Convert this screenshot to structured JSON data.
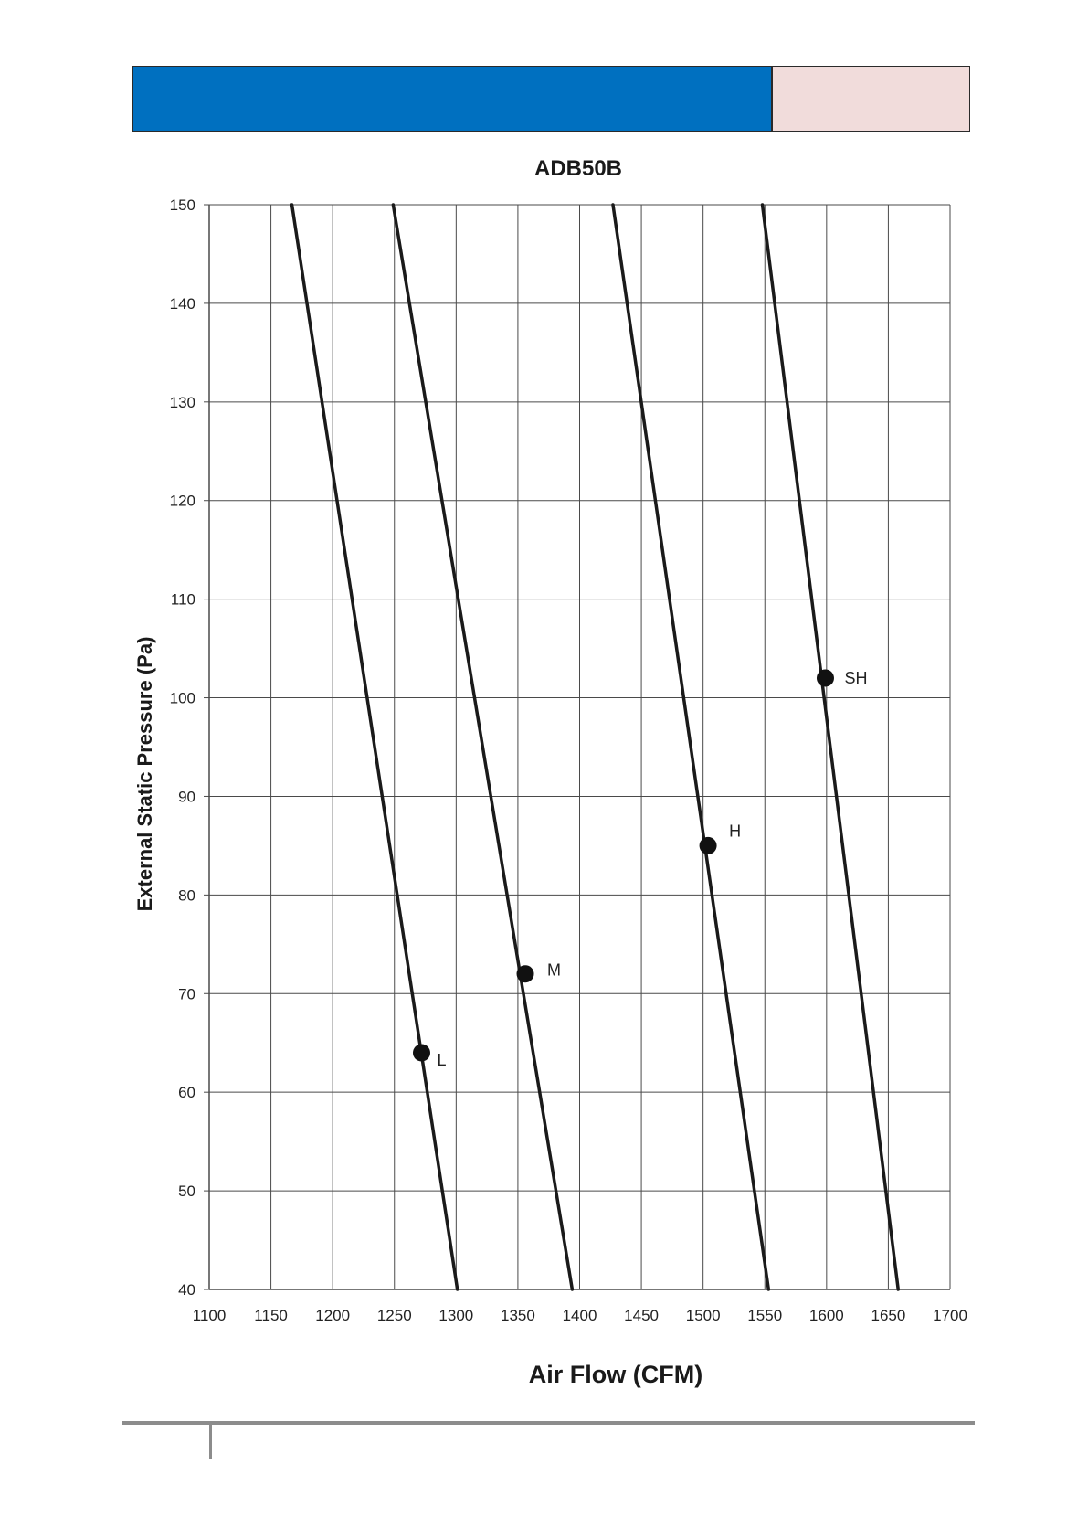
{
  "header": {
    "accent_color": "#0070c0",
    "side_color": "#f1dcdb"
  },
  "chart_data": {
    "type": "line",
    "title": "ADB50B",
    "xlabel": "Air Flow (CFM)",
    "ylabel": "External Static Pressure (Pa)",
    "xlim": [
      1100,
      1700
    ],
    "ylim": [
      40,
      150
    ],
    "x_ticks": [
      1100,
      1150,
      1200,
      1250,
      1300,
      1350,
      1400,
      1450,
      1500,
      1550,
      1600,
      1650,
      1700
    ],
    "y_ticks": [
      40,
      50,
      60,
      70,
      80,
      90,
      100,
      110,
      120,
      130,
      140,
      150
    ],
    "grid": true,
    "legend": "none",
    "series": [
      {
        "points": [
          [
            1167,
            150
          ],
          [
            1301,
            40
          ]
        ]
      },
      {
        "points": [
          [
            1249,
            150
          ],
          [
            1394,
            40
          ]
        ]
      },
      {
        "points": [
          [
            1427,
            150
          ],
          [
            1553,
            40
          ]
        ]
      },
      {
        "points": [
          [
            1548,
            150
          ],
          [
            1658,
            40
          ]
        ]
      }
    ],
    "markers": [
      {
        "label": "L",
        "x": 1272,
        "y": 64
      },
      {
        "label": "M",
        "x": 1356,
        "y": 72
      },
      {
        "label": "H",
        "x": 1504,
        "y": 85
      },
      {
        "label": "SH",
        "x": 1599,
        "y": 102
      }
    ]
  }
}
